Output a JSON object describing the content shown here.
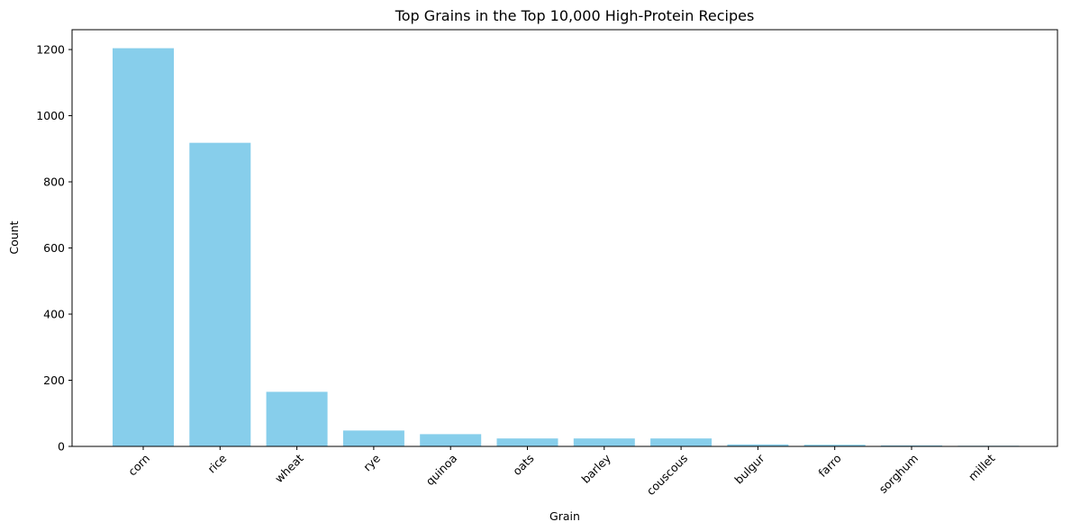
{
  "chart_data": {
    "type": "bar",
    "title": "Top Grains in the Top 10,000 High-Protein Recipes",
    "xlabel": "Grain",
    "ylabel": "Count",
    "categories": [
      "corn",
      "rice",
      "wheat",
      "rye",
      "quinoa",
      "oats",
      "barley",
      "couscous",
      "bulgur",
      "farro",
      "sorghum",
      "millet"
    ],
    "values": [
      1204,
      918,
      165,
      48,
      37,
      24,
      24,
      24,
      6,
      5,
      3,
      2
    ],
    "ylim": [
      0,
      1260
    ],
    "yticks": [
      0,
      200,
      400,
      600,
      800,
      1000,
      1200
    ],
    "bar_color": "#87CEEB",
    "grid": false,
    "legend": "none",
    "xtick_rotation": 45
  }
}
